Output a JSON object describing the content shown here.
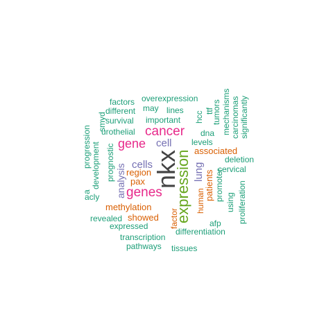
{
  "palette": {
    "teal": "#1b9e77",
    "orange": "#d95f02",
    "purple": "#7570b3",
    "magenta": "#e7298a",
    "green": "#66a61e",
    "dark": "#444444"
  },
  "words": [
    {
      "text": "nkx",
      "freq": 10,
      "color": "dark",
      "vertical": true
    },
    {
      "text": "expression",
      "freq": 7,
      "color": "green",
      "vertical": true
    },
    {
      "text": "cancer",
      "freq": 6,
      "color": "magenta",
      "vertical": false
    },
    {
      "text": "genes",
      "freq": 6,
      "color": "magenta",
      "vertical": false
    },
    {
      "text": "gene",
      "freq": 5,
      "color": "magenta",
      "vertical": false
    },
    {
      "text": "cells",
      "freq": 4,
      "color": "purple",
      "vertical": false
    },
    {
      "text": "cell",
      "freq": 4,
      "color": "purple",
      "vertical": false
    },
    {
      "text": "lung",
      "freq": 4,
      "color": "purple",
      "vertical": true
    },
    {
      "text": "analysis",
      "freq": 4,
      "color": "purple",
      "vertical": true
    },
    {
      "text": "methylation",
      "freq": 3,
      "color": "orange",
      "vertical": false
    },
    {
      "text": "associated",
      "freq": 3,
      "color": "orange",
      "vertical": false
    },
    {
      "text": "patients",
      "freq": 3,
      "color": "orange",
      "vertical": true
    },
    {
      "text": "region",
      "freq": 3,
      "color": "orange",
      "vertical": false
    },
    {
      "text": "showed",
      "freq": 3,
      "color": "orange",
      "vertical": false
    },
    {
      "text": "factor",
      "freq": 3,
      "color": "orange",
      "vertical": true
    },
    {
      "text": "human",
      "freq": 3,
      "color": "orange",
      "vertical": true
    },
    {
      "text": "pax",
      "freq": 3,
      "color": "orange",
      "vertical": false
    },
    {
      "text": "overexpression",
      "freq": 2,
      "color": "teal",
      "vertical": false
    },
    {
      "text": "factors",
      "freq": 2,
      "color": "teal",
      "vertical": false
    },
    {
      "text": "may",
      "freq": 2,
      "color": "teal",
      "vertical": false
    },
    {
      "text": "different",
      "freq": 2,
      "color": "teal",
      "vertical": false
    },
    {
      "text": "lines",
      "freq": 2,
      "color": "teal",
      "vertical": false
    },
    {
      "text": "important",
      "freq": 2,
      "color": "teal",
      "vertical": false
    },
    {
      "text": "survival",
      "freq": 2,
      "color": "teal",
      "vertical": false
    },
    {
      "text": "urothelial",
      "freq": 2,
      "color": "teal",
      "vertical": false
    },
    {
      "text": "levels",
      "freq": 2,
      "color": "teal",
      "vertical": false
    },
    {
      "text": "dna",
      "freq": 2,
      "color": "teal",
      "vertical": false
    },
    {
      "text": "hcc",
      "freq": 2,
      "color": "teal",
      "vertical": true
    },
    {
      "text": "ttf",
      "freq": 2,
      "color": "teal",
      "vertical": true
    },
    {
      "text": "tumors",
      "freq": 2,
      "color": "teal",
      "vertical": true
    },
    {
      "text": "mechanisms",
      "freq": 2,
      "color": "teal",
      "vertical": true
    },
    {
      "text": "carcinomas",
      "freq": 2,
      "color": "teal",
      "vertical": true
    },
    {
      "text": "significantly",
      "freq": 2,
      "color": "teal",
      "vertical": true
    },
    {
      "text": "smyd",
      "freq": 2,
      "color": "teal",
      "vertical": true
    },
    {
      "text": "progression",
      "freq": 2,
      "color": "teal",
      "vertical": true
    },
    {
      "text": "development",
      "freq": 2,
      "color": "teal",
      "vertical": true
    },
    {
      "text": "prognostic",
      "freq": 2,
      "color": "teal",
      "vertical": true
    },
    {
      "text": "deletion",
      "freq": 2,
      "color": "teal",
      "vertical": false
    },
    {
      "text": "cervical",
      "freq": 2,
      "color": "teal",
      "vertical": false
    },
    {
      "text": "promoter",
      "freq": 2,
      "color": "teal",
      "vertical": true
    },
    {
      "text": "proliferation",
      "freq": 2,
      "color": "teal",
      "vertical": true
    },
    {
      "text": "using",
      "freq": 2,
      "color": "teal",
      "vertical": true
    },
    {
      "text": "acly",
      "freq": 2,
      "color": "teal",
      "vertical": false
    },
    {
      "text": "a",
      "freq": 2,
      "color": "teal",
      "vertical": true
    },
    {
      "text": "revealed",
      "freq": 2,
      "color": "teal",
      "vertical": false
    },
    {
      "text": "expressed",
      "freq": 2,
      "color": "teal",
      "vertical": false
    },
    {
      "text": "afp",
      "freq": 2,
      "color": "teal",
      "vertical": false
    },
    {
      "text": "differentiation",
      "freq": 2,
      "color": "teal",
      "vertical": false
    },
    {
      "text": "transcription",
      "freq": 2,
      "color": "teal",
      "vertical": false
    },
    {
      "text": "pathways",
      "freq": 2,
      "color": "teal",
      "vertical": false
    },
    {
      "text": "tissues",
      "freq": 2,
      "color": "teal",
      "vertical": false
    }
  ]
}
